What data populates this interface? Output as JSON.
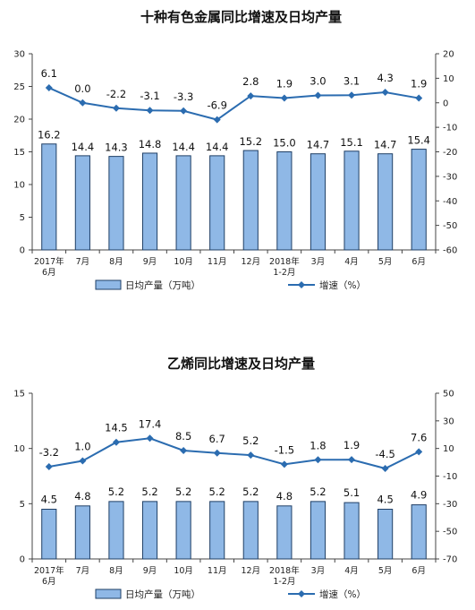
{
  "colors": {
    "bar_fill": "#8fb8e6",
    "bar_stroke": "#1f3f66",
    "line": "#2b6cb0",
    "axis": "#444444"
  },
  "chart_data": [
    {
      "type": "bar",
      "title": "十种有色金属同比增速及日均产量",
      "categories": [
        "2017年\n6月",
        "7月",
        "8月",
        "9月",
        "10月",
        "11月",
        "12月",
        "2018年\n1-2月",
        "3月",
        "4月",
        "5月",
        "6月"
      ],
      "series": [
        {
          "name": "日均产量（万吨）",
          "axis": "left",
          "values": [
            16.2,
            14.4,
            14.3,
            14.8,
            14.4,
            14.4,
            15.2,
            15.0,
            14.7,
            15.1,
            14.7,
            15.4
          ],
          "labels": [
            "16.2",
            "14.4",
            "14.3",
            "14.8",
            "14.4",
            "14.4",
            "15.2",
            "15.0",
            "14.7",
            "15.1",
            "14.7",
            "15.4"
          ]
        },
        {
          "name": "增速（%）",
          "type": "line",
          "axis": "right",
          "values": [
            6.1,
            0.0,
            -2.2,
            -3.1,
            -3.3,
            -6.9,
            2.8,
            1.9,
            3.0,
            3.1,
            4.3,
            1.9
          ],
          "labels": [
            "6.1",
            "0.0",
            "-2.2",
            "-3.1",
            "-3.3",
            "-6.9",
            "2.8",
            "1.9",
            "3.0",
            "3.1",
            "4.3",
            "1.9"
          ]
        }
      ],
      "ylim_left": [
        0,
        30
      ],
      "yticks_left": [
        "0",
        "5",
        "10",
        "15",
        "20",
        "25",
        "30"
      ],
      "ylim_right": [
        -60,
        20
      ],
      "yticks_right": [
        "-60",
        "-50",
        "-40",
        "-30",
        "-20",
        "-10",
        "0",
        "10",
        "20"
      ],
      "grid": false,
      "legend_position": "bottom"
    },
    {
      "type": "bar",
      "title": "乙烯同比增速及日均产量",
      "categories": [
        "2017年\n6月",
        "7月",
        "8月",
        "9月",
        "10月",
        "11月",
        "12月",
        "2018年\n1-2月",
        "3月",
        "4月",
        "5月",
        "6月"
      ],
      "series": [
        {
          "name": "日均产量（万吨）",
          "axis": "left",
          "values": [
            4.5,
            4.8,
            5.2,
            5.2,
            5.2,
            5.2,
            5.2,
            4.8,
            5.2,
            5.1,
            4.5,
            4.9
          ],
          "labels": [
            "4.5",
            "4.8",
            "5.2",
            "5.2",
            "5.2",
            "5.2",
            "5.2",
            "4.8",
            "5.2",
            "5.1",
            "4.5",
            "4.9"
          ]
        },
        {
          "name": "增速（%）",
          "type": "line",
          "axis": "right",
          "values": [
            -3.2,
            1.0,
            14.5,
            17.4,
            8.5,
            6.7,
            5.2,
            -1.5,
            1.8,
            1.9,
            -4.5,
            7.6
          ],
          "labels": [
            "-3.2",
            "1.0",
            "14.5",
            "17.4",
            "8.5",
            "6.7",
            "5.2",
            "-1.5",
            "1.8",
            "1.9",
            "-4.5",
            "7.6"
          ]
        }
      ],
      "ylim_left": [
        0,
        15
      ],
      "yticks_left": [
        "0",
        "5",
        "10",
        "15"
      ],
      "ylim_right": [
        -70,
        50
      ],
      "yticks_right": [
        "-70",
        "-50",
        "-30",
        "-10",
        "10",
        "30",
        "50"
      ],
      "grid": false,
      "legend_position": "bottom"
    }
  ]
}
